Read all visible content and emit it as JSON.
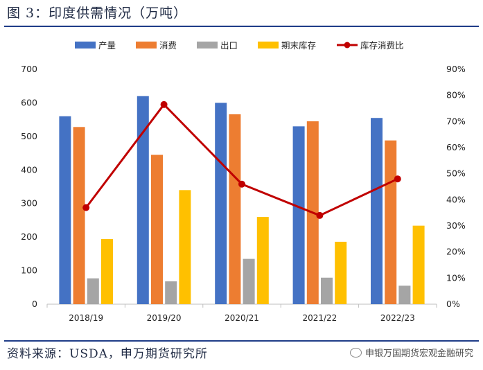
{
  "title": "图 3：印度供需情况（万吨）",
  "source": "资料来源：USDA，申万期货研究所",
  "watermark": "申银万国期货宏观金融研究",
  "chart_data": {
    "type": "bar",
    "categories": [
      "2018/19",
      "2019/20",
      "2020/21",
      "2021/22",
      "2022/23"
    ],
    "series": [
      {
        "name": "产量",
        "type": "bar",
        "axis": "left",
        "color": "#4472c4",
        "values": [
          560,
          620,
          600,
          530,
          555
        ]
      },
      {
        "name": "消费",
        "type": "bar",
        "axis": "left",
        "color": "#ed7d31",
        "values": [
          528,
          445,
          566,
          545,
          488
        ]
      },
      {
        "name": "出口",
        "type": "bar",
        "axis": "left",
        "color": "#a5a5a5",
        "values": [
          77,
          68,
          135,
          79,
          55
        ]
      },
      {
        "name": "期末库存",
        "type": "bar",
        "axis": "left",
        "color": "#ffc000",
        "values": [
          194,
          340,
          260,
          186,
          234
        ]
      },
      {
        "name": "库存消费比",
        "type": "line",
        "axis": "right",
        "color": "#c00000",
        "values": [
          37,
          76.5,
          46,
          34,
          48
        ]
      }
    ],
    "yleft": {
      "lim": [
        0,
        700
      ],
      "ticks": [
        "0",
        "100",
        "200",
        "300",
        "400",
        "500",
        "600",
        "700"
      ]
    },
    "yright": {
      "lim": [
        0,
        90
      ],
      "ticks": [
        "0%",
        "10%",
        "20%",
        "30%",
        "40%",
        "50%",
        "60%",
        "70%",
        "80%",
        "90%"
      ]
    },
    "legend": "top"
  }
}
